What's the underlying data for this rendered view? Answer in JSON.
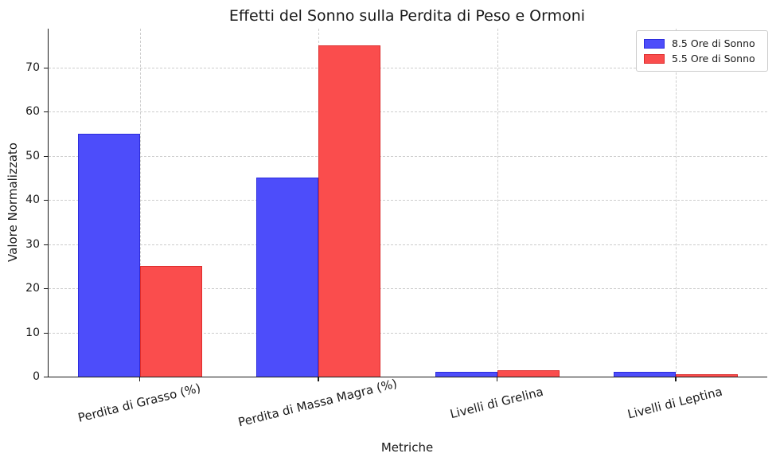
{
  "figure": {
    "title": "Effetti del Sonno sulla Perdita di Peso e Ormoni",
    "xlabel": "Metriche",
    "ylabel": "Valore Normalizzato"
  },
  "chart_data": {
    "type": "bar",
    "title": "Effetti del Sonno sulla Perdita di Peso e Ormoni",
    "xlabel": "Metriche",
    "ylabel": "Valore Normalizzato",
    "categories": [
      "Perdita di Grasso (%)",
      "Perdita di Massa Magra (%)",
      "Livelli di Grelina",
      "Livelli di Leptina"
    ],
    "series": [
      {
        "name": "8.5 Ore di Sonno",
        "values": [
          55,
          45,
          1.0,
          1.0
        ],
        "color": "#4d4dfa",
        "edge_color": "#2c2cdd"
      },
      {
        "name": "5.5 Ore di Sonno",
        "values": [
          25,
          75,
          1.4,
          0.6
        ],
        "color": "#fa4d4d",
        "edge_color": "#dd2c2c"
      }
    ],
    "yticks": [
      0,
      10,
      20,
      30,
      40,
      50,
      60,
      70
    ],
    "ylim": [
      0,
      78.75
    ],
    "xtick_rotation_deg": 14,
    "grid": true,
    "grid_style": "dashed",
    "grid_color": "#cdcdcd",
    "legend_position": "upper right",
    "background_color": "#ffffff",
    "text_color": "#1a1a1a"
  }
}
